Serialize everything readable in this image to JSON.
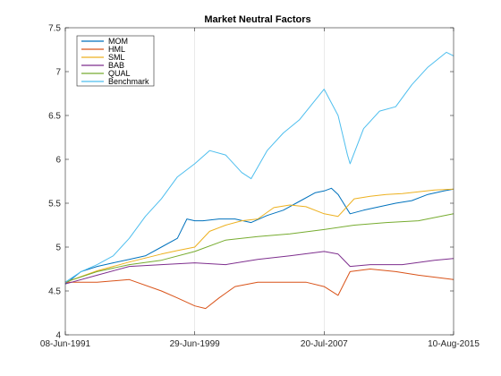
{
  "chart_data": {
    "type": "line",
    "title": "Market Neutral Factors",
    "xlabel": "",
    "ylabel": "",
    "x_start": "1991-06-08",
    "x_end": "2015-08-10",
    "x_ticks": [
      {
        "date": "1991-06-08",
        "label": "08-Jun-1991"
      },
      {
        "date": "1999-06-29",
        "label": "29-Jun-1999"
      },
      {
        "date": "2007-07-20",
        "label": "20-Jul-2007"
      },
      {
        "date": "2015-08-10",
        "label": "10-Aug-2015"
      }
    ],
    "ylim": [
      4,
      7.5
    ],
    "y_ticks": [
      4,
      4.5,
      5,
      5.5,
      6,
      6.5,
      7,
      7.5
    ],
    "y_tick_labels": [
      "4",
      "4.5",
      "5",
      "5.5",
      "6",
      "6.5",
      "7",
      "7.5"
    ],
    "grid": "vertical at x ticks",
    "legend_position": "top-left",
    "series": [
      {
        "name": "MOM",
        "color": "#0072BD",
        "points": [
          [
            "1991-06-08",
            4.58
          ],
          [
            "1992-06-01",
            4.72
          ],
          [
            "1993-06-01",
            4.78
          ],
          [
            "1994-06-01",
            4.82
          ],
          [
            "1995-06-01",
            4.86
          ],
          [
            "1996-06-01",
            4.9
          ],
          [
            "1997-06-01",
            5.0
          ],
          [
            "1998-06-01",
            5.1
          ],
          [
            "1999-01-01",
            5.32
          ],
          [
            "1999-06-29",
            5.3
          ],
          [
            "2000-01-01",
            5.3
          ],
          [
            "2001-01-01",
            5.32
          ],
          [
            "2002-01-01",
            5.32
          ],
          [
            "2003-01-01",
            5.28
          ],
          [
            "2004-01-01",
            5.36
          ],
          [
            "2005-01-01",
            5.42
          ],
          [
            "2006-01-01",
            5.52
          ],
          [
            "2007-01-01",
            5.62
          ],
          [
            "2007-07-20",
            5.64
          ],
          [
            "2008-01-01",
            5.67
          ],
          [
            "2008-06-01",
            5.6
          ],
          [
            "2009-03-01",
            5.38
          ],
          [
            "2010-01-01",
            5.42
          ],
          [
            "2011-01-01",
            5.46
          ],
          [
            "2012-01-01",
            5.5
          ],
          [
            "2013-01-01",
            5.53
          ],
          [
            "2014-01-01",
            5.6
          ],
          [
            "2015-01-01",
            5.64
          ],
          [
            "2015-08-10",
            5.66
          ]
        ]
      },
      {
        "name": "HML",
        "color": "#D95319",
        "points": [
          [
            "1991-06-08",
            4.6
          ],
          [
            "1993-06-01",
            4.6
          ],
          [
            "1995-06-01",
            4.63
          ],
          [
            "1997-06-01",
            4.5
          ],
          [
            "1998-06-01",
            4.42
          ],
          [
            "1999-06-29",
            4.33
          ],
          [
            "2000-03-01",
            4.3
          ],
          [
            "2001-01-01",
            4.42
          ],
          [
            "2002-01-01",
            4.55
          ],
          [
            "2003-06-01",
            4.6
          ],
          [
            "2005-01-01",
            4.6
          ],
          [
            "2006-06-01",
            4.6
          ],
          [
            "2007-07-20",
            4.55
          ],
          [
            "2008-06-01",
            4.45
          ],
          [
            "2009-03-01",
            4.72
          ],
          [
            "2010-06-01",
            4.75
          ],
          [
            "2012-01-01",
            4.72
          ],
          [
            "2013-06-01",
            4.68
          ],
          [
            "2015-08-10",
            4.63
          ]
        ]
      },
      {
        "name": "SML",
        "color": "#EDB120",
        "points": [
          [
            "1991-06-08",
            4.6
          ],
          [
            "1993-06-01",
            4.73
          ],
          [
            "1995-06-01",
            4.83
          ],
          [
            "1997-06-01",
            4.92
          ],
          [
            "1998-06-01",
            4.96
          ],
          [
            "1999-06-29",
            5.0
          ],
          [
            "2000-06-01",
            5.18
          ],
          [
            "2001-06-01",
            5.25
          ],
          [
            "2002-06-01",
            5.3
          ],
          [
            "2003-06-01",
            5.32
          ],
          [
            "2004-06-01",
            5.45
          ],
          [
            "2005-06-01",
            5.48
          ],
          [
            "2006-06-01",
            5.46
          ],
          [
            "2007-07-20",
            5.38
          ],
          [
            "2008-06-01",
            5.35
          ],
          [
            "2009-06-01",
            5.55
          ],
          [
            "2010-06-01",
            5.58
          ],
          [
            "2011-06-01",
            5.6
          ],
          [
            "2012-06-01",
            5.61
          ],
          [
            "2013-06-01",
            5.63
          ],
          [
            "2014-06-01",
            5.65
          ],
          [
            "2015-08-10",
            5.66
          ]
        ]
      },
      {
        "name": "BAB",
        "color": "#7E2F8E",
        "points": [
          [
            "1991-06-08",
            4.58
          ],
          [
            "1993-06-01",
            4.68
          ],
          [
            "1995-06-01",
            4.78
          ],
          [
            "1997-06-01",
            4.8
          ],
          [
            "1999-06-29",
            4.82
          ],
          [
            "2001-06-01",
            4.8
          ],
          [
            "2003-06-01",
            4.86
          ],
          [
            "2005-06-01",
            4.9
          ],
          [
            "2007-07-20",
            4.95
          ],
          [
            "2008-06-01",
            4.92
          ],
          [
            "2009-03-01",
            4.78
          ],
          [
            "2010-06-01",
            4.8
          ],
          [
            "2012-06-01",
            4.8
          ],
          [
            "2014-06-01",
            4.85
          ],
          [
            "2015-08-10",
            4.87
          ]
        ]
      },
      {
        "name": "QUAL",
        "color": "#77AC30",
        "points": [
          [
            "1991-06-08",
            4.6
          ],
          [
            "1993-06-01",
            4.72
          ],
          [
            "1995-06-01",
            4.8
          ],
          [
            "1997-06-01",
            4.85
          ],
          [
            "1999-06-29",
            4.95
          ],
          [
            "2001-06-01",
            5.08
          ],
          [
            "2003-06-01",
            5.12
          ],
          [
            "2005-06-01",
            5.15
          ],
          [
            "2007-07-20",
            5.2
          ],
          [
            "2009-06-01",
            5.25
          ],
          [
            "2011-06-01",
            5.28
          ],
          [
            "2013-06-01",
            5.3
          ],
          [
            "2015-08-10",
            5.38
          ]
        ]
      },
      {
        "name": "Benchmark",
        "color": "#4DBEEE",
        "points": [
          [
            "1991-06-08",
            4.6
          ],
          [
            "1992-06-01",
            4.72
          ],
          [
            "1993-06-01",
            4.8
          ],
          [
            "1994-06-01",
            4.9
          ],
          [
            "1995-06-01",
            5.1
          ],
          [
            "1996-06-01",
            5.35
          ],
          [
            "1997-06-01",
            5.55
          ],
          [
            "1998-06-01",
            5.8
          ],
          [
            "1999-06-29",
            5.95
          ],
          [
            "2000-06-01",
            6.1
          ],
          [
            "2001-06-01",
            6.05
          ],
          [
            "2002-06-01",
            5.85
          ],
          [
            "2003-01-01",
            5.78
          ],
          [
            "2004-01-01",
            6.1
          ],
          [
            "2005-01-01",
            6.3
          ],
          [
            "2006-01-01",
            6.45
          ],
          [
            "2007-07-20",
            6.8
          ],
          [
            "2008-06-01",
            6.5
          ],
          [
            "2009-01-01",
            6.05
          ],
          [
            "2009-03-01",
            5.95
          ],
          [
            "2010-01-01",
            6.35
          ],
          [
            "2011-01-01",
            6.55
          ],
          [
            "2012-01-01",
            6.6
          ],
          [
            "2013-01-01",
            6.85
          ],
          [
            "2014-01-01",
            7.05
          ],
          [
            "2015-03-01",
            7.22
          ],
          [
            "2015-08-10",
            7.18
          ]
        ]
      }
    ]
  }
}
